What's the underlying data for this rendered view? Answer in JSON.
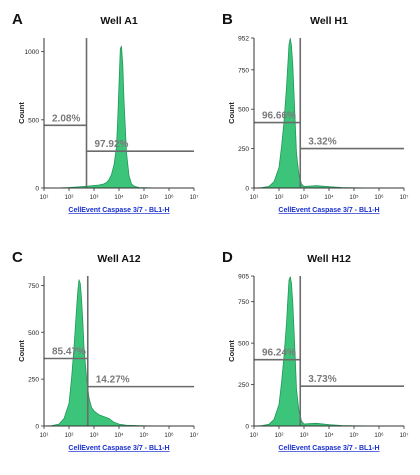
{
  "chart_data": [
    {
      "type": "area",
      "panel_letter": "A",
      "title": "Well A1",
      "xlabel": "CellEvent Caspase 3/7 - BL1-H",
      "ylabel": "Count",
      "xscale": "log",
      "xlim": [
        10,
        10000000
      ],
      "xticks": [
        "10¹",
        "10²",
        "10³",
        "10⁴",
        "10⁵",
        "10⁶",
        "10⁷"
      ],
      "ylim": [
        0,
        1100
      ],
      "yticks": [
        0,
        500,
        1000
      ],
      "gate_x": 2.7,
      "gates": [
        {
          "label": "2.08%",
          "level": 460
        },
        {
          "label": "97.92%",
          "level": 270
        }
      ],
      "histogram": {
        "x_log": [
          1.0,
          1.5,
          2.0,
          2.5,
          2.8,
          3.0,
          3.2,
          3.4,
          3.5,
          3.6,
          3.7,
          3.8,
          3.9,
          3.95,
          4.0,
          4.05,
          4.1,
          4.15,
          4.2,
          4.3,
          4.4,
          4.5,
          4.6,
          4.7,
          4.8,
          5.0,
          5.5,
          6.0,
          7.0
        ],
        "counts": [
          0,
          0,
          4,
          10,
          15,
          18,
          22,
          30,
          40,
          60,
          100,
          170,
          300,
          520,
          760,
          1020,
          1040,
          900,
          640,
          260,
          90,
          30,
          15,
          8,
          4,
          2,
          0,
          0,
          0
        ]
      }
    },
    {
      "type": "area",
      "panel_letter": "B",
      "title": "Well H1",
      "xlabel": "CellEvent Caspase 3/7 - BL1-H",
      "ylabel": "Count",
      "xscale": "log",
      "xlim": [
        10,
        10000000
      ],
      "xticks": [
        "10¹",
        "10²",
        "10³",
        "10⁴",
        "10⁵",
        "10⁶",
        "10⁷"
      ],
      "ylim": [
        0,
        952
      ],
      "yticks": [
        0,
        250,
        500,
        750,
        952
      ],
      "gate_x": 2.85,
      "gates": [
        {
          "label": "96.66%",
          "level": 415
        },
        {
          "label": "3.32%",
          "level": 250
        }
      ],
      "histogram": {
        "x_log": [
          1.0,
          1.3,
          1.6,
          1.8,
          2.0,
          2.1,
          2.2,
          2.3,
          2.35,
          2.4,
          2.45,
          2.5,
          2.55,
          2.6,
          2.65,
          2.7,
          2.8,
          2.9,
          3.0,
          3.2,
          3.5,
          4.0,
          4.5,
          5.0,
          6.0,
          7.0
        ],
        "counts": [
          0,
          2,
          10,
          40,
          130,
          260,
          420,
          640,
          780,
          910,
          950,
          900,
          780,
          600,
          400,
          220,
          80,
          25,
          10,
          12,
          15,
          8,
          3,
          1,
          0,
          0
        ]
      }
    },
    {
      "type": "area",
      "panel_letter": "C",
      "title": "Well A12",
      "xlabel": "CellEvent Caspase 3/7 - BL1-H",
      "ylabel": "Count",
      "xscale": "log",
      "xlim": [
        10,
        10000000
      ],
      "xticks": [
        "10¹",
        "10²",
        "10³",
        "10⁴",
        "10⁵",
        "10⁶",
        "10⁷"
      ],
      "ylim": [
        0,
        800
      ],
      "yticks": [
        0,
        250,
        500,
        750
      ],
      "gate_x": 2.75,
      "gates": [
        {
          "label": "85.47%",
          "level": 360
        },
        {
          "label": "14.27%",
          "level": 210
        }
      ],
      "histogram": {
        "x_log": [
          1.0,
          1.3,
          1.6,
          1.8,
          2.0,
          2.1,
          2.2,
          2.3,
          2.35,
          2.4,
          2.45,
          2.5,
          2.55,
          2.6,
          2.7,
          2.8,
          2.9,
          3.0,
          3.1,
          3.2,
          3.3,
          3.4,
          3.5,
          3.6,
          3.7,
          3.8,
          4.0,
          4.3,
          5.0,
          6.0,
          7.0
        ],
        "counts": [
          0,
          2,
          10,
          40,
          120,
          250,
          420,
          620,
          720,
          780,
          760,
          680,
          560,
          420,
          260,
          150,
          100,
          80,
          70,
          60,
          55,
          50,
          45,
          40,
          30,
          20,
          10,
          4,
          1,
          0,
          0
        ]
      }
    },
    {
      "type": "area",
      "panel_letter": "D",
      "title": "Well H12",
      "xlabel": "CellEvent Caspase 3/7 - BL1-H",
      "ylabel": "Count",
      "xscale": "log",
      "xlim": [
        10,
        10000000
      ],
      "xticks": [
        "10¹",
        "10²",
        "10³",
        "10⁴",
        "10⁵",
        "10⁶",
        "10⁷"
      ],
      "ylim": [
        0,
        905
      ],
      "yticks": [
        0,
        250,
        500,
        750,
        905
      ],
      "gate_x": 2.85,
      "gates": [
        {
          "label": "96.24%",
          "level": 400
        },
        {
          "label": "3.73%",
          "level": 240
        }
      ],
      "histogram": {
        "x_log": [
          1.0,
          1.3,
          1.6,
          1.8,
          2.0,
          2.1,
          2.2,
          2.3,
          2.35,
          2.4,
          2.45,
          2.5,
          2.55,
          2.6,
          2.65,
          2.7,
          2.8,
          2.9,
          3.0,
          3.2,
          3.5,
          4.0,
          4.5,
          5.0,
          6.0,
          7.0
        ],
        "counts": [
          0,
          2,
          10,
          40,
          130,
          260,
          420,
          620,
          760,
          880,
          900,
          860,
          740,
          580,
          400,
          220,
          90,
          30,
          12,
          14,
          16,
          8,
          3,
          1,
          0,
          0
        ]
      }
    }
  ]
}
